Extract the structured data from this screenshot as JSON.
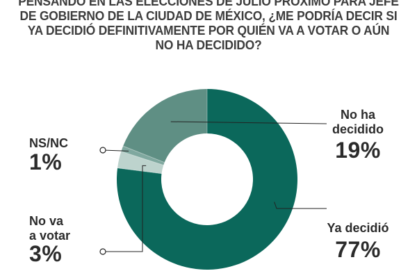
{
  "question": {
    "lines": [
      "PENSANDO EN LAS ELECCIONES DE JULIO PRÓXIMO PARA JEFE",
      "DE GOBIERNO DE LA CIUDAD DE MÉXICO, ¿ME PODRÍA DECIR SI",
      "YA DECIDIÓ DEFINITIVAMENTE POR QUIÉN VA A VOTAR O AÚN",
      "NO HA DECIDIDO?"
    ]
  },
  "chart_data": {
    "type": "pie",
    "donut": true,
    "slices": [
      {
        "name": "Ya decidió",
        "name_lines": [
          "Ya decidió"
        ],
        "label": "77%",
        "value": 77,
        "color": "#0b685b"
      },
      {
        "name": "No va a votar",
        "name_lines": [
          "No va",
          "a votar"
        ],
        "label": "3%",
        "value": 3,
        "color": "#bdd3cd"
      },
      {
        "name": "NS/NC",
        "name_lines": [
          "NS/NC"
        ],
        "label": "1%",
        "value": 1,
        "color": "#7fa89f"
      },
      {
        "name": "No ha decidido",
        "name_lines": [
          "No ha",
          "decidido"
        ],
        "label": "19%",
        "value": 19,
        "color": "#5f8f84"
      }
    ]
  }
}
